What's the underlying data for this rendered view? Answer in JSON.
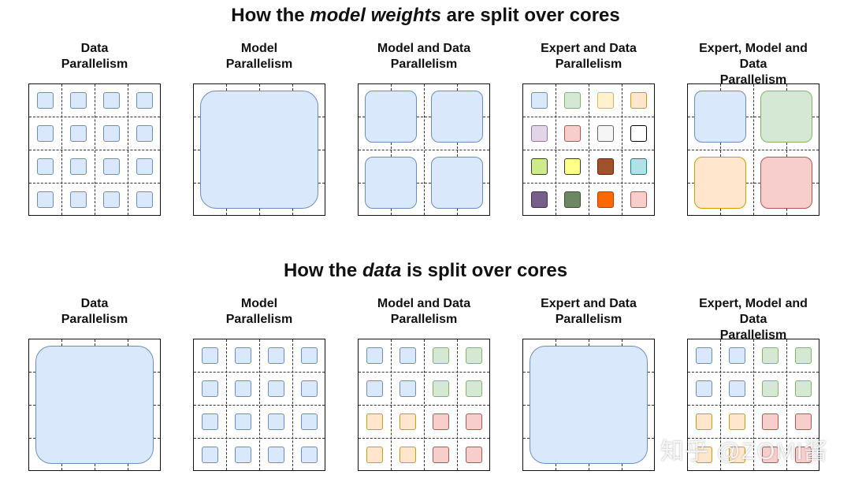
{
  "title_top": {
    "pre": "How the ",
    "em": "model weights",
    "post": " are split over cores"
  },
  "title_bottom": {
    "pre": "How the ",
    "em": "data",
    "post": " is split over cores"
  },
  "colors": {
    "blue": [
      "#dae8fc",
      "#6c8ebf"
    ],
    "green": [
      "#d5e8d4",
      "#82b366"
    ],
    "yellow": [
      "#fff2cc",
      "#d6b656"
    ],
    "orange": [
      "#ffe6cc",
      "#d79b00"
    ],
    "red": [
      "#f8cecc",
      "#b85450"
    ],
    "purple": [
      "#e1d5e7",
      "#9673a6"
    ],
    "gray": [
      "#f5f5f5",
      "#666666"
    ],
    "white": [
      "#ffffff",
      "#000000"
    ],
    "lime": [
      "#cdeb8b",
      "#36393d"
    ],
    "brightyellow": [
      "#ffff88",
      "#36393d"
    ],
    "brown": [
      "#a0522d",
      "#6d1f00"
    ],
    "cyan": [
      "#b0e3e6",
      "#0e8088"
    ],
    "darkpurple": [
      "#76608a",
      "#432d57"
    ],
    "darkgreen": [
      "#6d8764",
      "#3a5431"
    ],
    "vivid": [
      "#fa6800",
      "#c73500"
    ],
    "pink": [
      "#f8cecc",
      "#b85450"
    ]
  },
  "rows": [
    {
      "panels": [
        {
          "label": "Data\nParallelism",
          "blocks": {
            "mode": "cells",
            "colors": [
              "blue",
              "blue",
              "blue",
              "blue",
              "blue",
              "blue",
              "blue",
              "blue",
              "blue",
              "blue",
              "blue",
              "blue",
              "blue",
              "blue",
              "blue",
              "blue"
            ]
          }
        },
        {
          "label": "Model\nParallelism",
          "blocks": {
            "mode": "whole",
            "colors": [
              "blue"
            ]
          }
        },
        {
          "label": "Model and Data\nParallelism",
          "blocks": {
            "mode": "quads",
            "colors": [
              "blue",
              "blue",
              "blue",
              "blue"
            ]
          }
        },
        {
          "label": "Expert and Data\nParallelism",
          "blocks": {
            "mode": "cells",
            "colors": [
              "blue",
              "green",
              "yellow",
              "orange",
              "purple",
              "red",
              "gray",
              "white",
              "lime",
              "brightyellow",
              "brown",
              "cyan",
              "darkpurple",
              "darkgreen",
              "vivid",
              "pink"
            ]
          }
        },
        {
          "label": "Expert, Model and Data\nParallelism",
          "blocks": {
            "mode": "quads",
            "colors": [
              "blue",
              "green",
              "orange",
              "red"
            ]
          }
        }
      ]
    },
    {
      "panels": [
        {
          "label": "Data\nParallelism",
          "blocks": {
            "mode": "whole",
            "colors": [
              "blue"
            ]
          }
        },
        {
          "label": "Model\nParallelism",
          "blocks": {
            "mode": "cells",
            "colors": [
              "blue",
              "blue",
              "blue",
              "blue",
              "blue",
              "blue",
              "blue",
              "blue",
              "blue",
              "blue",
              "blue",
              "blue",
              "blue",
              "blue",
              "blue",
              "blue"
            ]
          }
        },
        {
          "label": "Model and Data\nParallelism",
          "blocks": {
            "mode": "cells",
            "colors": [
              "blue",
              "blue",
              "green",
              "green",
              "blue",
              "blue",
              "green",
              "green",
              "orange",
              "orange",
              "red",
              "red",
              "orange",
              "orange",
              "red",
              "red"
            ]
          }
        },
        {
          "label": "Expert and Data\nParallelism",
          "blocks": {
            "mode": "whole",
            "colors": [
              "blue"
            ]
          }
        },
        {
          "label": "Expert, Model and Data\nParallelism",
          "blocks": {
            "mode": "cells",
            "colors": [
              "blue",
              "blue",
              "green",
              "green",
              "blue",
              "blue",
              "green",
              "green",
              "orange",
              "orange",
              "red",
              "red",
              "orange",
              "orange",
              "red",
              "red"
            ]
          }
        }
      ]
    }
  ],
  "watermark": "知乎 @ZOMI酱"
}
